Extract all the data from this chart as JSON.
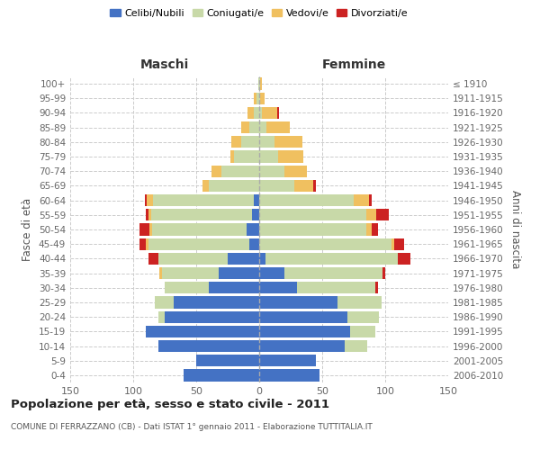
{
  "age_groups": [
    "100+",
    "95-99",
    "90-94",
    "85-89",
    "80-84",
    "75-79",
    "70-74",
    "65-69",
    "60-64",
    "55-59",
    "50-54",
    "45-49",
    "40-44",
    "35-39",
    "30-34",
    "25-29",
    "20-24",
    "15-19",
    "10-14",
    "5-9",
    "0-4"
  ],
  "birth_years": [
    "≤ 1910",
    "1911-1915",
    "1916-1920",
    "1921-1925",
    "1926-1930",
    "1931-1935",
    "1936-1940",
    "1941-1945",
    "1946-1950",
    "1951-1955",
    "1956-1960",
    "1961-1965",
    "1966-1970",
    "1971-1975",
    "1976-1980",
    "1981-1985",
    "1986-1990",
    "1991-1995",
    "1996-2000",
    "2001-2005",
    "2006-2010"
  ],
  "males": {
    "celibi": [
      0,
      0,
      0,
      0,
      0,
      0,
      0,
      0,
      4,
      6,
      10,
      8,
      25,
      32,
      40,
      68,
      75,
      90,
      80,
      50,
      60
    ],
    "coniugati": [
      1,
      2,
      4,
      8,
      14,
      20,
      30,
      40,
      80,
      80,
      75,
      80,
      55,
      45,
      35,
      15,
      5,
      0,
      0,
      0,
      0
    ],
    "vedovi": [
      0,
      2,
      5,
      6,
      8,
      3,
      8,
      5,
      5,
      2,
      2,
      2,
      0,
      2,
      0,
      0,
      0,
      0,
      0,
      0,
      0
    ],
    "divorziati": [
      0,
      0,
      0,
      0,
      0,
      0,
      0,
      0,
      2,
      2,
      8,
      5,
      8,
      0,
      0,
      0,
      0,
      0,
      0,
      0,
      0
    ]
  },
  "females": {
    "nubili": [
      0,
      0,
      0,
      0,
      0,
      0,
      0,
      0,
      0,
      0,
      0,
      0,
      5,
      20,
      30,
      62,
      70,
      72,
      68,
      45,
      48
    ],
    "coniugate": [
      1,
      1,
      2,
      6,
      12,
      15,
      20,
      28,
      75,
      85,
      85,
      105,
      105,
      78,
      62,
      35,
      25,
      20,
      18,
      0,
      0
    ],
    "vedove": [
      1,
      3,
      12,
      18,
      22,
      20,
      18,
      15,
      12,
      8,
      4,
      2,
      0,
      0,
      0,
      0,
      0,
      0,
      0,
      0,
      0
    ],
    "divorziate": [
      0,
      0,
      2,
      0,
      0,
      0,
      0,
      2,
      2,
      10,
      5,
      8,
      10,
      2,
      2,
      0,
      0,
      0,
      0,
      0,
      0
    ]
  },
  "colors": {
    "celibi_nubili": "#4472c4",
    "coniugati": "#c8d9a8",
    "vedovi": "#f0c060",
    "divorziati": "#cc2222"
  },
  "xlim": 150,
  "title": "Popolazione per età, sesso e stato civile - 2011",
  "subtitle": "COMUNE DI FERRAZZANO (CB) - Dati ISTAT 1° gennaio 2011 - Elaborazione TUTTITALIA.IT",
  "ylabel_left": "Fasce di età",
  "ylabel_right": "Anni di nascita",
  "xlabel_left": "Maschi",
  "xlabel_right": "Femmine",
  "bg_color": "#ffffff",
  "grid_color": "#cccccc"
}
